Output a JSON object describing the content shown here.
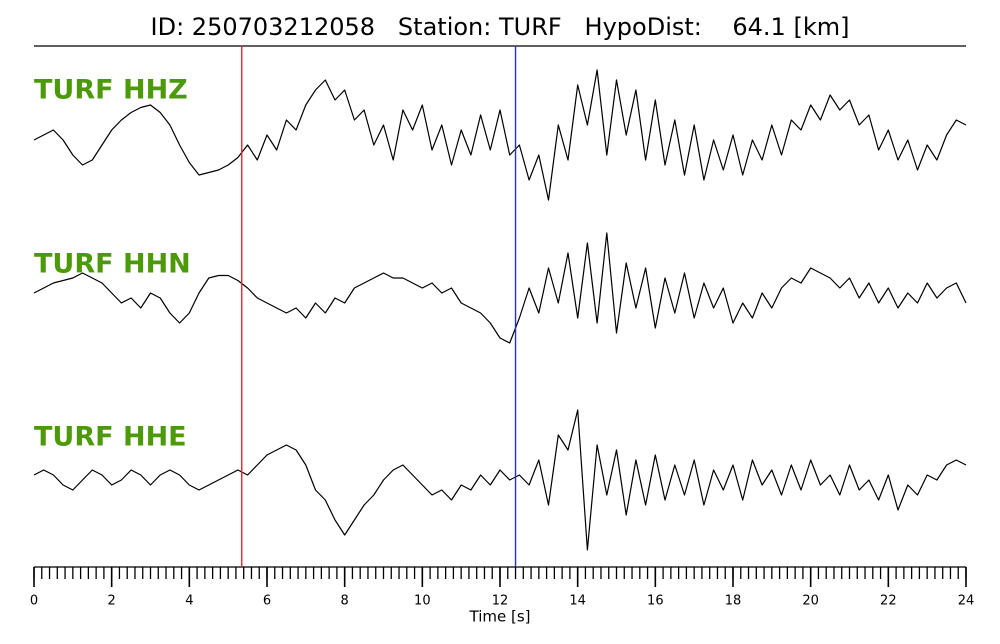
{
  "chart_data": {
    "type": "line",
    "title": "ID: 250703212058   Station: TURF   HypoDist:    64.1 [km]",
    "xlabel": "Time [s]",
    "xlim": [
      0,
      24
    ],
    "xticks": [
      0,
      2,
      4,
      6,
      8,
      10,
      12,
      14,
      16,
      18,
      20,
      22,
      24
    ],
    "xminorticks": [
      0,
      0.2,
      0.4,
      0.6,
      0.8,
      1,
      1.2,
      1.4,
      1.6,
      1.8,
      2,
      2.2,
      2.4,
      2.6,
      2.8,
      3,
      3.2,
      3.4,
      3.6,
      3.8,
      4,
      4.2,
      4.4,
      4.6,
      4.8,
      5,
      5.2,
      5.4,
      5.6,
      5.8,
      6,
      6.2,
      6.4,
      6.6,
      6.8,
      7,
      7.2,
      7.4,
      7.6,
      7.8,
      8,
      8.2,
      8.4,
      8.6,
      8.8,
      9,
      9.2,
      9.4,
      9.6,
      9.8,
      10,
      10.2,
      10.4,
      10.6,
      10.8,
      11,
      11.2,
      11.4,
      11.6,
      11.8,
      12,
      12.2,
      12.4,
      12.6,
      12.8,
      13,
      13.2,
      13.4,
      13.6,
      13.8,
      14,
      14.2,
      14.4,
      14.6,
      14.8,
      15,
      15.2,
      15.4,
      15.6,
      15.8,
      16,
      16.2,
      16.4,
      16.6,
      16.8,
      17,
      17.2,
      17.4,
      17.6,
      17.8,
      18,
      18.2,
      18.4,
      18.6,
      18.8,
      19,
      19.2,
      19.4,
      19.6,
      19.8,
      20,
      20.2,
      20.4,
      20.6,
      20.8,
      21,
      21.2,
      21.4,
      21.6,
      21.8,
      22,
      22.2,
      22.4,
      22.6,
      22.8,
      23,
      23.2,
      23.4,
      23.6,
      23.8,
      24
    ],
    "ylim": [
      -1.6,
      1.6
    ],
    "markers": [
      {
        "x": 5.35,
        "color": "#e8262a"
      },
      {
        "x": 12.4,
        "color": "#2233cc"
      }
    ],
    "label_color": "#4c9a0a",
    "x": [
      0,
      0.25,
      0.5,
      0.75,
      1,
      1.25,
      1.5,
      1.75,
      2,
      2.25,
      2.5,
      2.75,
      3,
      3.25,
      3.5,
      3.75,
      4,
      4.25,
      4.5,
      4.75,
      5,
      5.25,
      5.5,
      5.75,
      6,
      6.25,
      6.5,
      6.75,
      7,
      7.25,
      7.5,
      7.75,
      8,
      8.25,
      8.5,
      8.75,
      9,
      9.25,
      9.5,
      9.75,
      10,
      10.25,
      10.5,
      10.75,
      11,
      11.25,
      11.5,
      11.75,
      12,
      12.25,
      12.5,
      12.75,
      13,
      13.25,
      13.5,
      13.75,
      14,
      14.25,
      14.5,
      14.75,
      15,
      15.25,
      15.5,
      15.75,
      16,
      16.25,
      16.5,
      16.75,
      17,
      17.25,
      17.5,
      17.75,
      18,
      18.25,
      18.5,
      18.75,
      19,
      19.25,
      19.5,
      19.75,
      20,
      20.25,
      20.5,
      20.75,
      21,
      21.25,
      21.5,
      21.75,
      22,
      22.25,
      22.5,
      22.75,
      23,
      23.25,
      23.5,
      23.75,
      24
    ],
    "series": [
      {
        "name": "TURF HHZ",
        "color": "#000000",
        "values": [
          -0.1,
          0.0,
          0.1,
          -0.1,
          -0.4,
          -0.6,
          -0.5,
          -0.2,
          0.1,
          0.3,
          0.45,
          0.55,
          0.6,
          0.45,
          0.2,
          -0.2,
          -0.55,
          -0.8,
          -0.75,
          -0.7,
          -0.6,
          -0.45,
          -0.2,
          -0.5,
          0.0,
          -0.3,
          0.3,
          0.1,
          0.6,
          0.9,
          1.1,
          0.7,
          0.9,
          0.3,
          0.5,
          -0.2,
          0.2,
          -0.5,
          0.5,
          0.1,
          0.6,
          -0.3,
          0.2,
          -0.6,
          0.1,
          -0.4,
          0.4,
          -0.3,
          0.5,
          -0.4,
          -0.2,
          -0.9,
          -0.4,
          -1.3,
          0.2,
          -0.5,
          1.0,
          0.2,
          1.3,
          -0.4,
          1.1,
          0.0,
          0.9,
          -0.5,
          0.7,
          -0.6,
          0.3,
          -0.8,
          0.2,
          -0.9,
          -0.1,
          -0.7,
          0.0,
          -0.8,
          -0.1,
          -0.5,
          0.2,
          -0.4,
          0.3,
          0.1,
          0.6,
          0.3,
          0.8,
          0.5,
          0.7,
          0.2,
          0.4,
          -0.3,
          0.1,
          -0.5,
          -0.1,
          -0.7,
          -0.2,
          -0.5,
          0.0,
          0.3,
          0.2
        ]
      },
      {
        "name": "TURF HHN",
        "color": "#000000",
        "values": [
          0.0,
          0.1,
          0.2,
          0.25,
          0.3,
          0.4,
          0.3,
          0.2,
          0.0,
          -0.2,
          -0.1,
          -0.3,
          0.0,
          -0.1,
          -0.4,
          -0.6,
          -0.4,
          0.0,
          0.3,
          0.35,
          0.35,
          0.25,
          0.1,
          -0.1,
          -0.2,
          -0.3,
          -0.4,
          -0.3,
          -0.5,
          -0.2,
          -0.4,
          -0.1,
          -0.2,
          0.1,
          0.2,
          0.3,
          0.4,
          0.3,
          0.3,
          0.2,
          0.1,
          0.2,
          0.0,
          0.1,
          -0.2,
          -0.3,
          -0.4,
          -0.6,
          -0.9,
          -1.0,
          -0.5,
          0.1,
          -0.4,
          0.5,
          -0.2,
          0.8,
          -0.5,
          1.0,
          -0.6,
          1.2,
          -0.8,
          0.6,
          -0.3,
          0.5,
          -0.7,
          0.3,
          -0.4,
          0.4,
          -0.5,
          0.2,
          -0.3,
          0.1,
          -0.6,
          -0.2,
          -0.5,
          0.0,
          -0.3,
          0.1,
          0.3,
          0.2,
          0.5,
          0.4,
          0.3,
          0.1,
          0.3,
          -0.1,
          0.2,
          -0.2,
          0.1,
          -0.3,
          0.0,
          -0.2,
          0.2,
          -0.1,
          0.1,
          0.2,
          -0.2
        ]
      },
      {
        "name": "TURF HHE",
        "color": "#000000",
        "values": [
          0.0,
          0.1,
          0.0,
          -0.2,
          -0.3,
          -0.1,
          0.1,
          0.0,
          -0.2,
          -0.1,
          0.1,
          0.0,
          -0.2,
          0.0,
          0.1,
          0.0,
          -0.2,
          -0.3,
          -0.2,
          -0.1,
          0.0,
          0.1,
          0.0,
          0.2,
          0.4,
          0.5,
          0.6,
          0.5,
          0.2,
          -0.3,
          -0.5,
          -0.9,
          -1.2,
          -0.9,
          -0.6,
          -0.4,
          -0.1,
          0.1,
          0.2,
          0.0,
          -0.2,
          -0.4,
          -0.3,
          -0.5,
          -0.2,
          -0.3,
          0.0,
          -0.2,
          0.1,
          -0.1,
          0.0,
          -0.2,
          0.3,
          -0.6,
          0.8,
          0.5,
          1.3,
          -1.5,
          0.6,
          -0.4,
          0.5,
          -0.8,
          0.3,
          -0.6,
          0.4,
          -0.5,
          0.2,
          -0.4,
          0.3,
          -0.6,
          0.1,
          -0.3,
          0.2,
          -0.5,
          0.3,
          -0.2,
          0.1,
          -0.4,
          0.2,
          -0.3,
          0.3,
          -0.2,
          0.0,
          -0.4,
          0.2,
          -0.3,
          -0.1,
          -0.5,
          0.0,
          -0.7,
          -0.2,
          -0.4,
          0.0,
          -0.1,
          0.2,
          0.3,
          0.2
        ]
      }
    ]
  }
}
